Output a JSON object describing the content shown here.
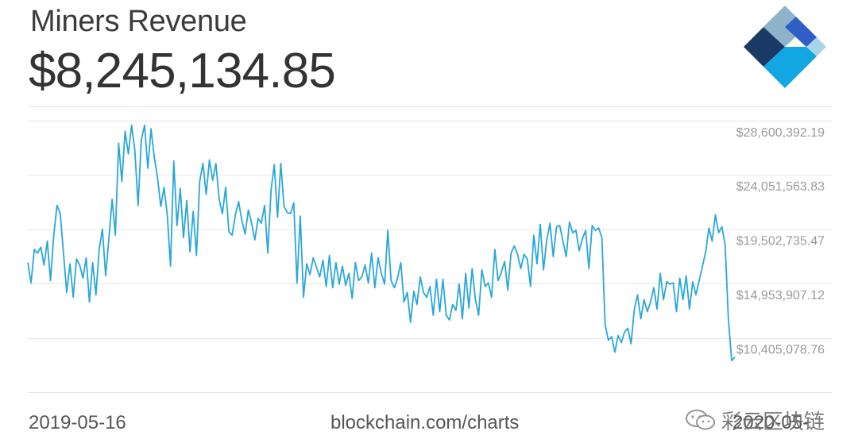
{
  "header": {
    "title": "Miners Revenue",
    "value": "$8,245,134.85"
  },
  "footer": {
    "start_date": "2019-05-16",
    "source": "blockchain.com/charts",
    "end_date": "2020-05-"
  },
  "watermark": {
    "text": "彩云区块链"
  },
  "colors": {
    "line": "#2aa7d8",
    "grid": "#e6e6e6",
    "tick_text": "#9a9a9a",
    "logo_dark": "#1b3a66",
    "logo_blue": "#2f5fc4",
    "logo_light": "#a9d4e8",
    "logo_cyan": "#12a6e3",
    "logo_grey": "#8fb3c9"
  },
  "chart_data": {
    "type": "line",
    "title": "Miners Revenue",
    "xlabel": "",
    "ylabel": "",
    "x_start": "2019-05-16",
    "ylim": [
      5856250.41,
      29782000
    ],
    "yticks": [
      28600392.19,
      24051563.83,
      19502735.47,
      14953907.12,
      10405078.76
    ],
    "ytick_labels": [
      "$28,600,392.19",
      "$24,051,563.83",
      "$19,502,735.47",
      "$14,953,907.12",
      "$10,405,078.76"
    ],
    "grid": true,
    "series": [
      {
        "values": [
          16700000,
          15000000,
          17800000,
          17500000,
          18000000,
          16500000,
          18500000,
          15200000,
          19000000,
          21500000,
          20800000,
          17500000,
          14200000,
          16600000,
          13800000,
          17000000,
          16500000,
          15400000,
          17100000,
          13400000,
          16700000,
          14000000,
          17800000,
          19500000,
          15600000,
          18700000,
          22000000,
          19000000,
          26700000,
          23500000,
          27700000,
          25800000,
          28200000,
          26100000,
          21500000,
          27000000,
          28200000,
          24600000,
          27900000,
          25500000,
          23800000,
          21400000,
          23000000,
          20700000,
          16400000,
          25200000,
          19800000,
          22900000,
          18800000,
          21900000,
          17600000,
          21000000,
          17300000,
          23500000,
          25000000,
          22400000,
          25300000,
          23600000,
          25000000,
          22000000,
          20800000,
          23000000,
          19300000,
          19000000,
          20700000,
          21800000,
          20200000,
          19100000,
          21100000,
          20000000,
          18600000,
          20400000,
          20000000,
          21500000,
          17500000,
          22800000,
          24900000,
          20500000,
          25000000,
          21400000,
          20900000,
          20800000,
          21700000,
          15000000,
          20600000,
          13800000,
          16600000,
          15700000,
          17100000,
          16300000,
          15500000,
          16900000,
          14700000,
          17300000,
          14600000,
          16700000,
          14900000,
          16400000,
          14800000,
          15800000,
          13700000,
          16700000,
          15200000,
          15500000,
          16500000,
          15000000,
          17500000,
          14600000,
          17100000,
          15800000,
          14900000,
          19400000,
          15200000,
          14600000,
          15400000,
          16700000,
          13400000,
          14200000,
          11700000,
          14300000,
          13200000,
          15500000,
          14200000,
          13800000,
          14700000,
          12300000,
          15300000,
          12600000,
          15300000,
          12300000,
          11900000,
          13200000,
          12700000,
          14900000,
          12000000,
          15800000,
          12900000,
          16200000,
          13600000,
          12300000,
          16100000,
          14700000,
          15000000,
          13800000,
          17800000,
          15200000,
          15900000,
          16800000,
          14400000,
          17500000,
          18100000,
          17400000,
          16200000,
          17400000,
          17000000,
          14700000,
          19000000,
          16600000,
          19900000,
          16100000,
          18600000,
          20000000,
          17200000,
          19700000,
          19800000,
          18500000,
          17200000,
          20100000,
          19200000,
          19400000,
          17700000,
          18700000,
          19400000,
          16200000,
          19800000,
          19400000,
          19600000,
          18800000,
          11500000,
          10200000,
          10500000,
          9200000,
          10600000,
          10000000,
          10900000,
          11200000,
          9900000,
          12800000,
          14000000,
          12000000,
          13600000,
          12600000,
          13400000,
          14600000,
          12800000,
          15800000,
          13600000,
          15100000,
          14900000,
          15000000,
          12600000,
          15400000,
          13600000,
          15600000,
          12800000,
          15100000,
          14000000,
          15200000,
          16400000,
          17600000,
          19600000,
          18500000,
          20700000,
          19200000,
          19700000,
          18200000,
          12000000,
          8500000,
          8800000
        ]
      }
    ]
  }
}
